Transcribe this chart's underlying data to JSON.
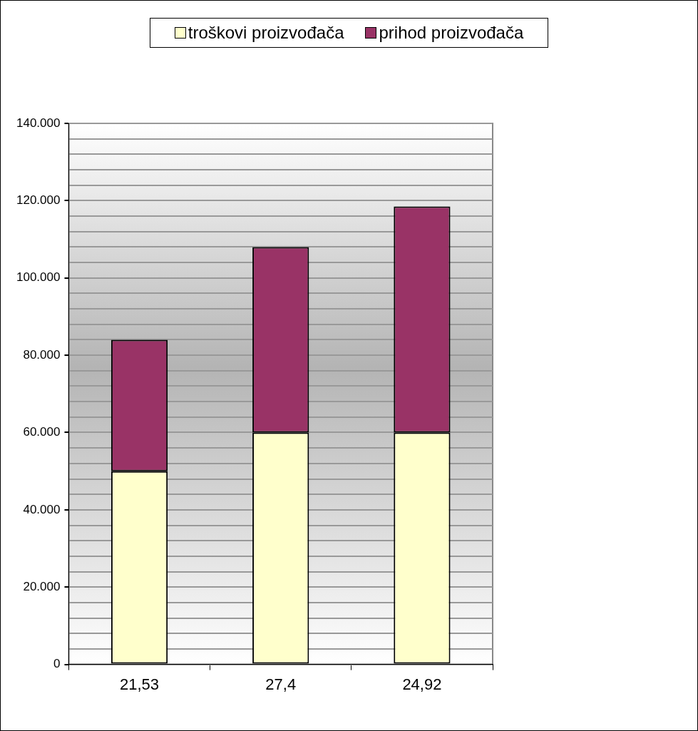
{
  "chart_data": {
    "type": "bar",
    "stacked": true,
    "categories": [
      "21,53",
      "27,4",
      "24,92"
    ],
    "series": [
      {
        "name": "troškovi proizvođača",
        "color": "#ffffcc",
        "values": [
          50000,
          60000,
          60000
        ]
      },
      {
        "name": "prihod proizvođača",
        "color": "#993366",
        "values": [
          34000,
          48000,
          58500
        ]
      }
    ],
    "ylim": [
      0,
      140000
    ],
    "yticks": [
      {
        "value": 0,
        "label": "0"
      },
      {
        "value": 4000,
        "label": null
      },
      {
        "value": 8000,
        "label": null
      },
      {
        "value": 12000,
        "label": null
      },
      {
        "value": 16000,
        "label": null
      },
      {
        "value": 20000,
        "label": "20.000"
      },
      {
        "value": 24000,
        "label": null
      },
      {
        "value": 28000,
        "label": null
      },
      {
        "value": 32000,
        "label": null
      },
      {
        "value": 36000,
        "label": null
      },
      {
        "value": 40000,
        "label": "40.000"
      },
      {
        "value": 44000,
        "label": null
      },
      {
        "value": 48000,
        "label": null
      },
      {
        "value": 52000,
        "label": null
      },
      {
        "value": 56000,
        "label": null
      },
      {
        "value": 60000,
        "label": "60.000"
      },
      {
        "value": 64000,
        "label": null
      },
      {
        "value": 68000,
        "label": null
      },
      {
        "value": 72000,
        "label": null
      },
      {
        "value": 76000,
        "label": null
      },
      {
        "value": 80000,
        "label": "80.000"
      },
      {
        "value": 84000,
        "label": null
      },
      {
        "value": 88000,
        "label": null
      },
      {
        "value": 92000,
        "label": null
      },
      {
        "value": 96000,
        "label": null
      },
      {
        "value": 100000,
        "label": "100.000"
      },
      {
        "value": 104000,
        "label": null
      },
      {
        "value": 108000,
        "label": null
      },
      {
        "value": 112000,
        "label": null
      },
      {
        "value": 116000,
        "label": null
      },
      {
        "value": 120000,
        "label": "120.000"
      },
      {
        "value": 124000,
        "label": null
      },
      {
        "value": 128000,
        "label": null
      },
      {
        "value": 132000,
        "label": null
      },
      {
        "value": 136000,
        "label": null
      },
      {
        "value": 140000,
        "label": "140.000"
      }
    ],
    "grid": "y",
    "legend": "top"
  }
}
